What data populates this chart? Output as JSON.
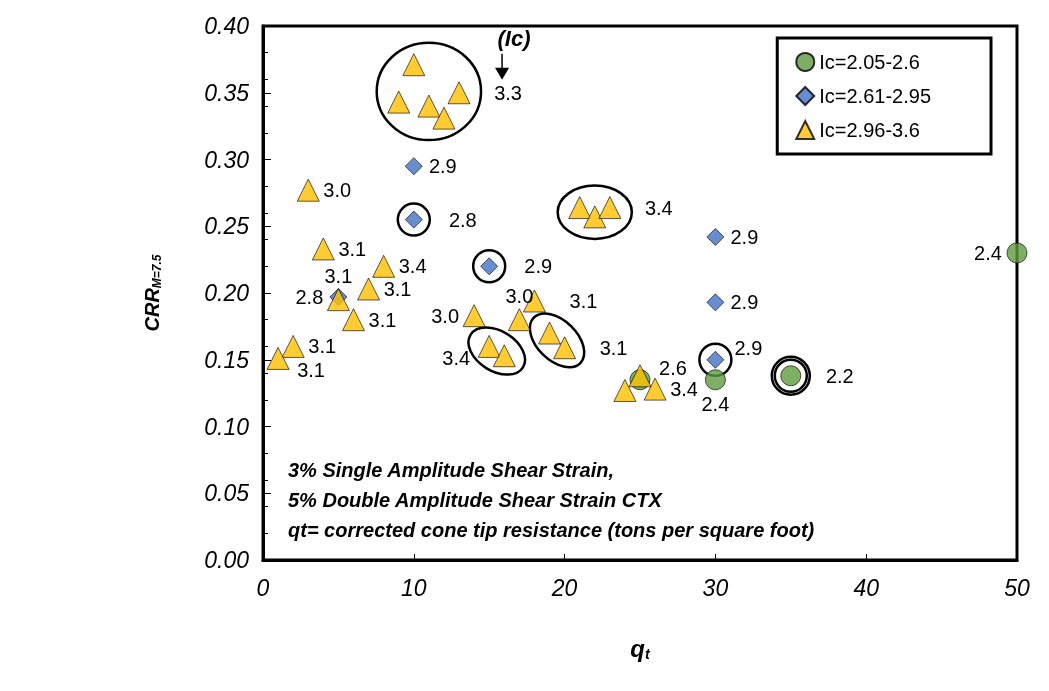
{
  "chart_data": {
    "type": "scatter",
    "xlabel": "q$_{t}$",
    "ylabel": "CRR$_{M=7.5}$",
    "xlim": [
      0,
      50
    ],
    "xticks": [
      0,
      10,
      20,
      30,
      40,
      50
    ],
    "ylim": [
      0,
      0.4
    ],
    "yticks": [
      {
        "value": 0,
        "label": "0.00"
      },
      {
        "value": 0.05,
        "label": "0.05"
      },
      {
        "value": 0.1,
        "label": "0.10"
      },
      {
        "value": 0.15,
        "label": "0.15"
      },
      {
        "value": 0.2,
        "label": "0.20"
      },
      {
        "value": 0.25,
        "label": "0.25"
      },
      {
        "value": 0.3,
        "label": "0.30"
      },
      {
        "value": 0.35,
        "label": "0.35"
      },
      {
        "value": 0.4,
        "label": "0.40"
      }
    ],
    "grid": false,
    "legend": "top right",
    "series": [
      {
        "name": "Ic=2.05-2.6",
        "color": "#5f9a3e",
        "marker": "circle",
        "x": [
          25,
          30,
          35,
          50
        ],
        "values": [
          0.135,
          0.135,
          0.138,
          0.23
        ]
      },
      {
        "name": "Ic=2.61-2.95",
        "color": "#4472c4",
        "marker": "diamond",
        "x": [
          10,
          10,
          15,
          30,
          30,
          30,
          5
        ],
        "values": [
          0.295,
          0.255,
          0.22,
          0.242,
          0.193,
          0.15,
          0.197
        ]
      },
      {
        "name": "Ic=2.96-3.6",
        "color": "#ffc000",
        "marker": "triangle",
        "x": [
          10,
          9,
          11,
          12,
          13,
          3,
          4,
          8,
          7,
          5,
          6,
          2,
          1,
          14,
          17,
          18,
          15,
          16,
          19,
          20,
          21,
          22,
          23,
          24,
          25,
          26
        ],
        "values": [
          0.371,
          0.343,
          0.34,
          0.331,
          0.35,
          0.277,
          0.233,
          0.22,
          0.203,
          0.195,
          0.18,
          0.16,
          0.151,
          0.183,
          0.18,
          0.194,
          0.16,
          0.153,
          0.17,
          0.159,
          0.264,
          0.257,
          0.264,
          0.127,
          0.138,
          0.128
        ]
      }
    ],
    "annotations": [
      "(Ic)",
      {
        "text": "3.3",
        "x": 13,
        "y": 0.35
      },
      {
        "text": "2.9",
        "x": 10,
        "y": 0.295
      },
      {
        "text": "3.0",
        "x": 3,
        "y": 0.277
      },
      {
        "text": "2.8",
        "x": 10,
        "y": 0.255
      },
      {
        "text": "3.4",
        "x": 23,
        "y": 0.264
      },
      {
        "text": "3.1",
        "x": 4,
        "y": 0.233
      },
      {
        "text": "3.4",
        "x": 8,
        "y": 0.22
      },
      {
        "text": "2.9",
        "x": 15,
        "y": 0.22
      },
      {
        "text": "3.1",
        "x": 7,
        "y": 0.203
      },
      {
        "text": "2.8",
        "x": 5,
        "y": 0.197
      },
      {
        "text": "3.1",
        "x": 5,
        "y": 0.195
      },
      {
        "text": "3.1",
        "x": 6,
        "y": 0.18
      },
      {
        "text": "3.0",
        "x": 14,
        "y": 0.183
      },
      {
        "text": "3.1",
        "x": 18,
        "y": 0.194
      },
      {
        "text": "3.0",
        "x": 17,
        "y": 0.18
      },
      {
        "text": "3.1",
        "x": 20,
        "y": 0.159
      },
      {
        "text": "3.4",
        "x": 15,
        "y": 0.16
      },
      {
        "text": "3.1",
        "x": 2,
        "y": 0.16
      },
      {
        "text": "3.1",
        "x": 1,
        "y": 0.151
      },
      {
        "text": "2.6",
        "x": 25,
        "y": 0.135
      },
      {
        "text": "3.4",
        "x": 26,
        "y": 0.128
      },
      {
        "text": "2.9",
        "x": 30,
        "y": 0.242
      },
      {
        "text": "2.9",
        "x": 30,
        "y": 0.193
      },
      {
        "text": "2.9",
        "x": 30,
        "y": 0.15
      },
      {
        "text": "2.4",
        "x": 30,
        "y": 0.135
      },
      {
        "text": "2.2",
        "x": 35,
        "y": 0.138
      },
      {
        "text": "2.4",
        "x": 50,
        "y": 0.23
      },
      "3% Single Amplitude Shear Strain,",
      "5% Double Amplitude Shear Strain CTX",
      "qt= corrected cone tip resistance (tons per square foot)"
    ]
  }
}
